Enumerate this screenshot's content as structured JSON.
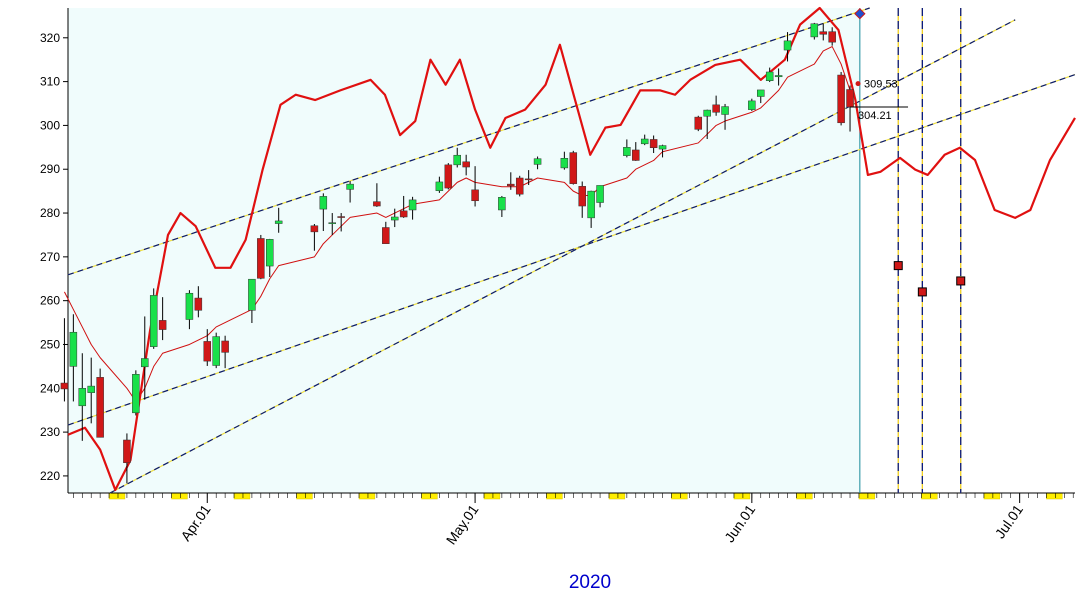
{
  "chart_data": {
    "type": "candlestick",
    "xlabel": "2020",
    "xlim": [
      15.4,
      128.2
    ],
    "ylim": [
      216.1,
      326.8
    ],
    "xticks": [
      {
        "value": 31,
        "label": "Apr.01"
      },
      {
        "value": 61,
        "label": "May.01"
      },
      {
        "value": 92,
        "label": "Jun.01"
      },
      {
        "value": 122,
        "label": "Jul.01"
      }
    ],
    "yticks": [
      220,
      230,
      240,
      250,
      260,
      270,
      280,
      290,
      300,
      310,
      320
    ],
    "up_color": "#19e04a",
    "down_color": "#d01818",
    "x": [
      15,
      16,
      17,
      18,
      19,
      22,
      23,
      24,
      25,
      26,
      29,
      30,
      31,
      32,
      33,
      36,
      37,
      38,
      39,
      43,
      44,
      45,
      46,
      47,
      50,
      51,
      52,
      53,
      54,
      57,
      58,
      59,
      60,
      61,
      64,
      65,
      66,
      67,
      68,
      71,
      72,
      73,
      74,
      75,
      78,
      79,
      80,
      81,
      82,
      86,
      87,
      88,
      89,
      92,
      93,
      94,
      95,
      96,
      99,
      100,
      101,
      102,
      103
    ],
    "open": [
      241.2,
      245,
      236,
      239,
      242.5,
      228.2,
      234.4,
      244.9,
      249.5,
      255.5,
      255.7,
      260.6,
      250.7,
      245.2,
      250.8,
      257.8,
      274.2,
      267.9,
      277.6,
      277.1,
      280.9,
      277.6,
      279.2,
      285.4,
      282.6,
      276.7,
      278.4,
      280.5,
      280.7,
      285.1,
      291,
      291,
      291.7,
      285.3,
      280.7,
      286.6,
      288,
      287.8,
      291.1,
      290.3,
      293.8,
      286.1,
      278.9,
      282.4,
      293.1,
      294.4,
      295.8,
      296.8,
      294.6,
      301.9,
      302.1,
      304.7,
      302.5,
      303.6,
      306.6,
      310.2,
      311.1,
      317.2,
      320.2,
      321.4,
      321.4,
      311.5,
      308.2
    ],
    "high": [
      256,
      256.9,
      248,
      247,
      244.5,
      229.7,
      244.1,
      256.4,
      262.8,
      260.8,
      262.4,
      263.3,
      253.5,
      252.7,
      252,
      264.9,
      275,
      274.1,
      281.2,
      277.5,
      284.5,
      280,
      280,
      287.3,
      286.8,
      278,
      281,
      283.9,
      283.7,
      288.3,
      291.4,
      294.9,
      293.3,
      290.7,
      283.9,
      289.3,
      288.5,
      289.8,
      292.9,
      294,
      294.2,
      287.2,
      285.1,
      286.3,
      296.8,
      296.2,
      297.9,
      297.7,
      295.6,
      302.2,
      303.6,
      306.8,
      304.9,
      306.1,
      308.1,
      313.2,
      313,
      321.3,
      323.4,
      323.3,
      322.4,
      312.2,
      309.1
    ],
    "low": [
      237,
      237,
      228,
      232,
      228.8,
      218.3,
      233.8,
      237.4,
      249,
      251,
      253.5,
      256.2,
      245.1,
      244.6,
      244.6,
      254.9,
      264.9,
      265.4,
      275.5,
      271.4,
      275.9,
      275,
      275.8,
      282.4,
      281.4,
      273.6,
      276.8,
      278.9,
      278.5,
      284.6,
      285.4,
      290.4,
      288.6,
      281.5,
      279.1,
      285.3,
      283.8,
      286.4,
      290,
      289.9,
      286.5,
      278.9,
      276.6,
      281.3,
      292.7,
      291.9,
      295.5,
      293.7,
      292.7,
      298.7,
      296.9,
      302.2,
      299,
      303.3,
      305.1,
      309.9,
      309.1,
      314.6,
      319.6,
      319.4,
      318.2,
      300,
      298.6
    ],
    "close": [
      239.85,
      252.8,
      240,
      240.5,
      228.8,
      223,
      243.2,
      246.8,
      261.2,
      253.4,
      261.7,
      257.8,
      246.2,
      251.8,
      248.2,
      264.9,
      265.1,
      274,
      278.2,
      275.7,
      283.8,
      277.8,
      279.1,
      286.6,
      281.6,
      273,
      279.1,
      279.1,
      283,
      287.1,
      285.7,
      293.2,
      290.5,
      282.8,
      283.6,
      286.2,
      284.3,
      287.7,
      292.4,
      292.5,
      286.7,
      281.6,
      285,
      286.3,
      295,
      292,
      296.9,
      294.9,
      295.4,
      299.1,
      303.5,
      303,
      304.3,
      305.6,
      308.1,
      312.2,
      311.4,
      319.3,
      323.2,
      320.8,
      319,
      300.6,
      304.21
    ],
    "lines": [
      {
        "color": "#d01010",
        "width": 1,
        "x": [
          15,
          16,
          17,
          18,
          19,
          22,
          23,
          24,
          25,
          26,
          29,
          30,
          31,
          32,
          33,
          36,
          37,
          38,
          39,
          43,
          44,
          45,
          46,
          47,
          50,
          51,
          52,
          53,
          54,
          57,
          58,
          59,
          60,
          61,
          64,
          65,
          66,
          67,
          68,
          71,
          72,
          73,
          74,
          75,
          78,
          79,
          80,
          81,
          82,
          86,
          87,
          88,
          89,
          92,
          93,
          94,
          95,
          96,
          99,
          100,
          101,
          102,
          103
        ],
        "values": [
          262,
          258,
          254,
          250,
          247,
          240,
          237,
          240,
          245,
          248,
          250,
          251,
          252,
          254,
          255,
          258,
          261,
          265,
          268,
          270,
          273,
          275,
          277,
          279,
          280,
          279,
          280,
          281,
          282,
          283,
          285,
          287,
          288,
          287,
          286,
          286,
          286,
          287,
          288,
          287,
          285,
          284,
          284,
          286,
          288,
          290,
          291,
          292,
          294,
          296,
          298,
          300,
          301,
          303,
          304,
          306,
          308,
          311,
          314,
          317,
          318,
          314,
          308
        ]
      },
      {
        "color": "#e01010",
        "width": 2.2,
        "x": [
          15.4,
          17.3,
          19.0,
          20.7,
          22.4,
          24.6,
          26.6,
          28.0,
          29.7,
          31.9,
          33.6,
          35.3,
          37.2,
          39.2,
          40.9,
          43.1,
          45.9,
          49.3,
          50.9,
          52.6,
          54.3,
          56.0,
          57.7,
          59.3,
          61.0,
          62.7,
          64.4,
          66.6,
          68.9,
          70.5,
          72.2,
          73.9,
          75.6,
          77.3,
          79.5,
          81.7,
          83.4,
          85.1,
          87.9,
          90.7,
          93.0,
          95.7,
          97.4,
          99.6,
          101.7,
          103.6,
          105.0,
          106.4,
          108.6,
          110.3,
          111.7,
          113.6,
          115.3,
          117.0,
          119.2,
          121.5,
          123.2,
          125.4,
          128.2
        ],
        "values": [
          229.4,
          231,
          226,
          216.8,
          223.6,
          253.3,
          275,
          280,
          277,
          267.5,
          267.5,
          273.9,
          289.9,
          304.7,
          307,
          305.8,
          308,
          310.4,
          307,
          297.8,
          301,
          315,
          309.3,
          315,
          303.6,
          294.9,
          301.7,
          303.6,
          309.3,
          318.4,
          305.8,
          293.3,
          299.5,
          300.1,
          308,
          308,
          307,
          310.4,
          313.8,
          315,
          310.4,
          315,
          323,
          326.8,
          321.8,
          305.8,
          288.7,
          289.4,
          292.6,
          289.9,
          288.7,
          293.3,
          294.9,
          292.1,
          280.7,
          278.9,
          280.7,
          292.1,
          301.7
        ]
      }
    ],
    "trendlines": [
      {
        "x": [
          15.4,
          105.2
        ],
        "values": [
          265.9,
          326.8
        ]
      },
      {
        "x": [
          15.4,
          128.2
        ],
        "values": [
          231.6,
          311.6
        ]
      },
      {
        "x": [
          20.1,
          121.5
        ],
        "values": [
          216.1,
          324.1
        ]
      }
    ],
    "projections": {
      "x": [
        108.4,
        111.1,
        115.4
      ],
      "values": [
        268,
        262,
        264.5
      ]
    },
    "marker": {
      "x": 104.1,
      "value": 325.5
    },
    "price_labels": [
      309.53,
      304.21
    ]
  }
}
